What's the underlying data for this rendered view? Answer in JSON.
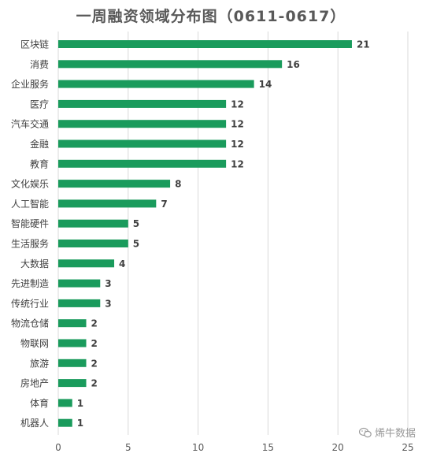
{
  "chart_data": {
    "type": "bar",
    "orientation": "horizontal",
    "title": "一周融资领域分布图（0611-0617）",
    "categories": [
      "区块链",
      "消费",
      "企业服务",
      "医疗",
      "汽车交通",
      "金融",
      "教育",
      "文化娱乐",
      "人工智能",
      "智能硬件",
      "生活服务",
      "大数据",
      "先进制造",
      "传统行业",
      "物流仓储",
      "物联网",
      "旅游",
      "房地产",
      "体育",
      "机器人"
    ],
    "values": [
      21,
      16,
      14,
      12,
      12,
      12,
      12,
      8,
      7,
      5,
      5,
      4,
      3,
      3,
      2,
      2,
      2,
      2,
      1,
      1
    ],
    "xlim": [
      0,
      25
    ],
    "xticks": [
      0,
      5,
      10,
      15,
      20,
      25
    ],
    "grid": true,
    "bar_color": "#1a9b5c"
  },
  "watermark": "烯牛数据"
}
